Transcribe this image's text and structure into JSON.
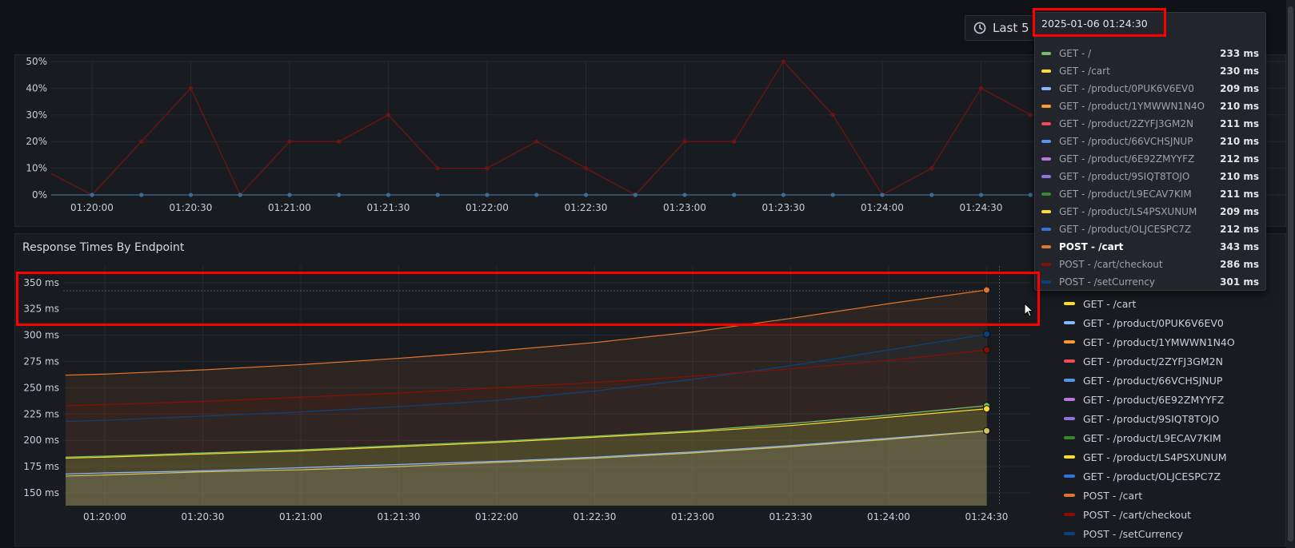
{
  "time_picker": {
    "label": "Last 5",
    "icon": "clock-icon"
  },
  "top_panel": {
    "y_ticks": [
      "50%",
      "40%",
      "30%",
      "20%",
      "10%",
      "0%"
    ],
    "x_ticks": [
      "01:20:00",
      "01:20:30",
      "01:21:00",
      "01:21:30",
      "01:22:00",
      "01:22:30",
      "01:23:00",
      "01:23:30",
      "01:24:00",
      "01:24:30"
    ]
  },
  "bottom_panel": {
    "title": "Response Times By Endpoint",
    "y_ticks": [
      "350 ms",
      "325 ms",
      "300 ms",
      "275 ms",
      "250 ms",
      "225 ms",
      "200 ms",
      "175 ms",
      "150 ms"
    ],
    "x_ticks": [
      "01:20:00",
      "01:20:30",
      "01:21:00",
      "01:21:30",
      "01:22:00",
      "01:22:30",
      "01:23:00",
      "01:23:30",
      "01:24:00",
      "01:24:30"
    ],
    "legend": [
      {
        "name": "GET - /cart",
        "color": "#fade2a"
      },
      {
        "name": "GET - /product/0PUK6V6EV0",
        "color": "#8ab8ff"
      },
      {
        "name": "GET - /product/1YMWWN1N4O",
        "color": "#ff9830"
      },
      {
        "name": "GET - /product/2ZYFJ3GM2N",
        "color": "#f2495c"
      },
      {
        "name": "GET - /product/66VCHSJNUP",
        "color": "#5794f2"
      },
      {
        "name": "GET - /product/6E92ZMYYFZ",
        "color": "#b877d9"
      },
      {
        "name": "GET - /product/9SIQT8TOJO",
        "color": "#8f76d6"
      },
      {
        "name": "GET - /product/L9ECAV7KIM",
        "color": "#37872d"
      },
      {
        "name": "GET - /product/LS4PSXUNUM",
        "color": "#fade2a"
      },
      {
        "name": "GET - /product/OLJCESPC7Z",
        "color": "#3274d9"
      },
      {
        "name": "POST - /cart",
        "color": "#e0752d"
      },
      {
        "name": "POST - /cart/checkout",
        "color": "#890f02"
      },
      {
        "name": "POST - /setCurrency",
        "color": "#0a437c"
      }
    ]
  },
  "tooltip": {
    "time": "2025-01-06 01:24:30",
    "rows": [
      {
        "name": "GET - /",
        "value": "233 ms",
        "color": "#73bf69"
      },
      {
        "name": "GET - /cart",
        "value": "230 ms",
        "color": "#fade2a"
      },
      {
        "name": "GET - /product/0PUK6V6EV0",
        "value": "209 ms",
        "color": "#8ab8ff"
      },
      {
        "name": "GET - /product/1YMWWN1N4O",
        "value": "210 ms",
        "color": "#ff9830"
      },
      {
        "name": "GET - /product/2ZYFJ3GM2N",
        "value": "211 ms",
        "color": "#f2495c"
      },
      {
        "name": "GET - /product/66VCHSJNUP",
        "value": "210 ms",
        "color": "#5794f2"
      },
      {
        "name": "GET - /product/6E92ZMYYFZ",
        "value": "212 ms",
        "color": "#b877d9"
      },
      {
        "name": "GET - /product/9SIQT8TOJO",
        "value": "210 ms",
        "color": "#8f76d6"
      },
      {
        "name": "GET - /product/L9ECAV7KIM",
        "value": "211 ms",
        "color": "#37872d"
      },
      {
        "name": "GET - /product/LS4PSXUNUM",
        "value": "209 ms",
        "color": "#fade2a"
      },
      {
        "name": "GET - /product/OLJCESPC7Z",
        "value": "212 ms",
        "color": "#3274d9"
      },
      {
        "name": "POST - /cart",
        "value": "343 ms",
        "color": "#e0752d",
        "highlight": true
      },
      {
        "name": "POST - /cart/checkout",
        "value": "286 ms",
        "color": "#890f02"
      },
      {
        "name": "POST - /setCurrency",
        "value": "301 ms",
        "color": "#0a437c"
      }
    ]
  },
  "chart_data": [
    {
      "type": "line",
      "x": [
        "01:19:45",
        "01:20:00",
        "01:20:15",
        "01:20:30",
        "01:20:45",
        "01:21:00",
        "01:21:15",
        "01:21:30",
        "01:21:45",
        "01:22:00",
        "01:22:15",
        "01:22:30",
        "01:22:45",
        "01:23:00",
        "01:23:15",
        "01:23:30",
        "01:23:45",
        "01:24:00",
        "01:24:15",
        "01:24:30",
        "01:24:45"
      ],
      "series": [
        {
          "values": [
            8,
            0,
            20,
            40,
            0,
            20,
            20,
            30,
            10,
            10,
            20,
            10,
            0,
            20,
            20,
            50,
            30,
            0,
            10,
            40,
            30
          ],
          "color": "#6e1414"
        },
        {
          "values": [
            0,
            0,
            0,
            0,
            0,
            0,
            0,
            0,
            0,
            0,
            0,
            0,
            0,
            0,
            0,
            0,
            0,
            0,
            0,
            0,
            0
          ],
          "color": "#3b6e96"
        }
      ],
      "ylim": [
        0,
        50
      ],
      "y_unit": "%"
    },
    {
      "type": "area",
      "x": [
        "01:19:48",
        "01:20:00",
        "01:20:30",
        "01:21:00",
        "01:21:30",
        "01:22:00",
        "01:22:30",
        "01:23:00",
        "01:23:30",
        "01:24:00",
        "01:24:30"
      ],
      "series": [
        {
          "name": "POST - /cart",
          "color": "#e0752d",
          "values": [
            262,
            263,
            267,
            272,
            278,
            285,
            293,
            303,
            316,
            330,
            343
          ]
        },
        {
          "name": "POST - /setCurrency",
          "color": "#0a437c",
          "values": [
            218,
            219,
            223,
            227,
            232,
            238,
            247,
            258,
            271,
            286,
            301
          ]
        },
        {
          "name": "POST - /cart/checkout",
          "color": "#890f02",
          "values": [
            233,
            234,
            237,
            241,
            245,
            250,
            255,
            261,
            268,
            276,
            286
          ]
        },
        {
          "name": "GET - /",
          "color": "#73bf69",
          "values": [
            184,
            185,
            188,
            191,
            195,
            199,
            204,
            209,
            216,
            224,
            233
          ]
        },
        {
          "name": "GET - /cart",
          "color": "#fade2a",
          "values": [
            183,
            184,
            187,
            190,
            194,
            198,
            203,
            208,
            214,
            222,
            230
          ]
        },
        {
          "name": "GET - /product/0PUK6V6EV0",
          "color": "#8ab8ff",
          "values": [
            168,
            169,
            171,
            174,
            177,
            180,
            184,
            189,
            195,
            202,
            209
          ]
        },
        {
          "name": "GET - /product/LS4PSXUNUM",
          "color": "#d9c25a",
          "values": [
            166,
            167,
            170,
            172,
            175,
            179,
            183,
            188,
            194,
            201,
            209
          ]
        }
      ],
      "ylim": [
        140,
        360
      ],
      "y_unit": "ms"
    }
  ]
}
